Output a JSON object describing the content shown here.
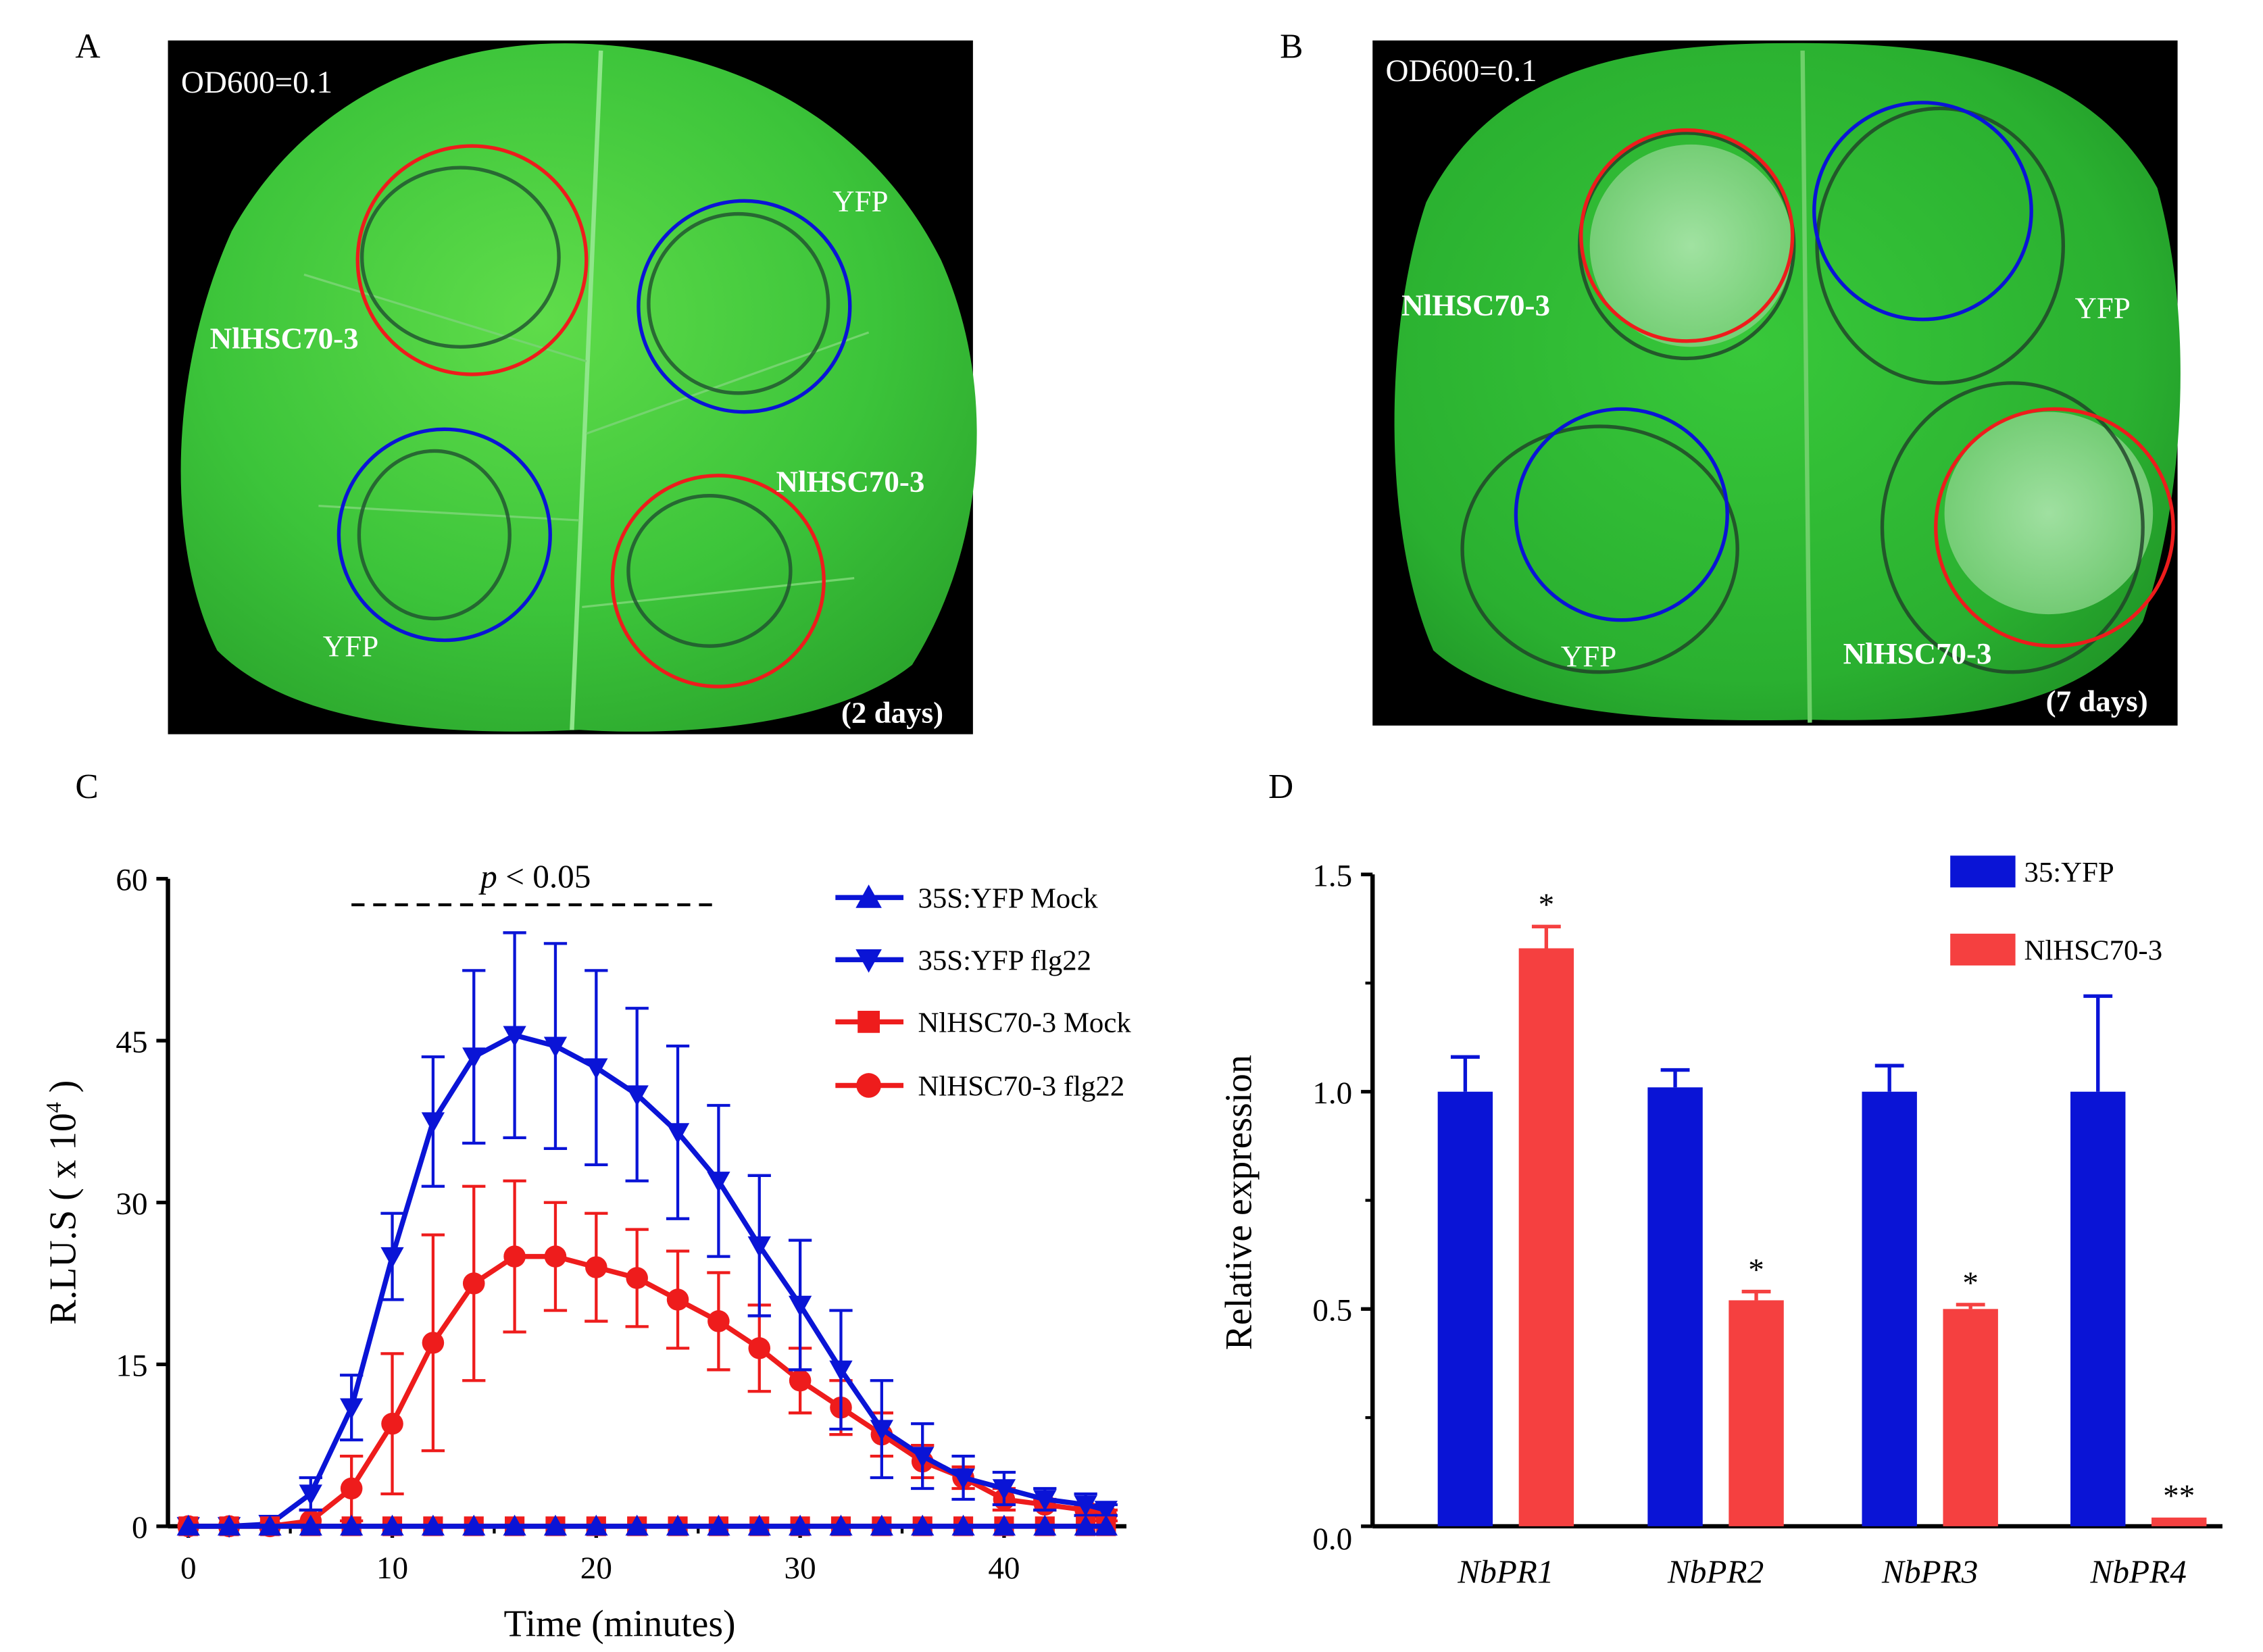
{
  "panel_labels": {
    "A": "A",
    "B": "B",
    "C": "C",
    "D": "D"
  },
  "panel_a": {
    "od": "OD600=0.1",
    "days": "(2 days)",
    "labels": {
      "top_left": "NlHSC70-3",
      "top_right": "YFP",
      "bottom_left": "YFP",
      "bottom_right": "NlHSC70-3"
    }
  },
  "panel_b": {
    "od": "OD600=0.1",
    "days": "(7 days)",
    "labels": {
      "top_left": "NlHSC70-3",
      "top_right": "YFP",
      "bottom_left": "YFP",
      "bottom_right": "NlHSC70-3"
    }
  },
  "colors": {
    "blue": "#0a14d6",
    "red": "#ee1c1c",
    "bar_red": "#f54040",
    "leaf": "#35bf35"
  },
  "chart_data": [
    {
      "type": "line",
      "xlabel": "Time (minutes)",
      "ylabel_main": "R.LU.S ( x 10",
      "ylabel_sup": "4",
      "ylabel_end": " )",
      "xlim": [
        -1,
        46
      ],
      "ylim": [
        0,
        60
      ],
      "xticks": [
        0,
        10,
        20,
        30,
        40
      ],
      "yticks": [
        0,
        15,
        30,
        45,
        60
      ],
      "annotation": {
        "p": "p",
        "text": " < 0.05",
        "from": 8,
        "to": 26
      },
      "x": [
        0,
        2,
        4,
        6,
        8,
        10,
        12,
        14,
        16,
        18,
        20,
        22,
        24,
        26,
        28,
        30,
        32,
        34,
        36,
        38,
        40,
        42,
        44,
        45
      ],
      "series": [
        {
          "name": "35S:YFP Mock",
          "color": "blue",
          "marker": "triangle-up",
          "values": [
            0,
            0,
            0,
            0,
            0,
            0,
            0,
            0,
            0,
            0,
            0,
            0,
            0,
            0,
            0,
            0,
            0,
            0,
            0,
            0,
            0,
            0,
            0,
            0
          ]
        },
        {
          "name": "35S:YFP flg22",
          "color": "blue",
          "marker": "triangle-down",
          "values": [
            0,
            0,
            0.2,
            3,
            11,
            25,
            37.5,
            43.5,
            45.5,
            44.5,
            42.5,
            40,
            36.5,
            32,
            26,
            20.5,
            14.5,
            9,
            6.5,
            4.5,
            3.5,
            2.5,
            2,
            1.5
          ],
          "errors": [
            0,
            0,
            0,
            1.5,
            3,
            4,
            6,
            8,
            9.5,
            9.5,
            9,
            8,
            8,
            7,
            6.5,
            6,
            5.5,
            4.5,
            3,
            2,
            1.5,
            1,
            1,
            0.5
          ]
        },
        {
          "name": "NlHSC70-3 Mock",
          "color": "red",
          "marker": "square",
          "values": [
            0,
            0,
            0,
            0,
            0,
            0,
            0,
            0,
            0,
            0,
            0,
            0,
            0,
            0,
            0,
            0,
            0,
            0,
            0,
            0,
            0,
            0,
            0,
            0
          ]
        },
        {
          "name": "NlHSC70-3 flg22",
          "color": "red",
          "marker": "circle",
          "values": [
            0,
            0,
            0,
            0.5,
            3.5,
            9.5,
            17,
            22.5,
            25,
            25,
            24,
            23,
            21,
            19,
            16.5,
            13.5,
            11,
            8.5,
            6,
            4.5,
            2.5,
            2,
            1.5,
            1
          ],
          "errors": [
            0,
            0,
            0,
            1,
            3,
            6.5,
            10,
            9,
            7,
            5,
            5,
            4.5,
            4.5,
            4.5,
            4,
            3,
            2.5,
            2,
            1.5,
            1,
            1,
            0.5,
            0.5,
            0.5
          ]
        }
      ]
    },
    {
      "type": "bar",
      "ylabel": "Relative expression",
      "ylim": [
        0,
        1.5
      ],
      "yticks": [
        "0.0",
        "0.5",
        "1.0",
        "1.5"
      ],
      "categories": [
        "NbPR1",
        "NbPR2",
        "NbPR3",
        "NbPR4"
      ],
      "series": [
        {
          "name": "35:YFP",
          "color": "blue",
          "values": [
            1.0,
            1.01,
            1.0,
            1.0
          ],
          "errors": [
            0.08,
            0.04,
            0.06,
            0.22
          ]
        },
        {
          "name": "NlHSC70-3",
          "color": "bar_red",
          "values": [
            1.33,
            0.52,
            0.5,
            0.02
          ],
          "errors": [
            0.05,
            0.02,
            0.01,
            0.0
          ]
        }
      ],
      "significance": [
        "*",
        "*",
        "*",
        "**"
      ]
    }
  ]
}
